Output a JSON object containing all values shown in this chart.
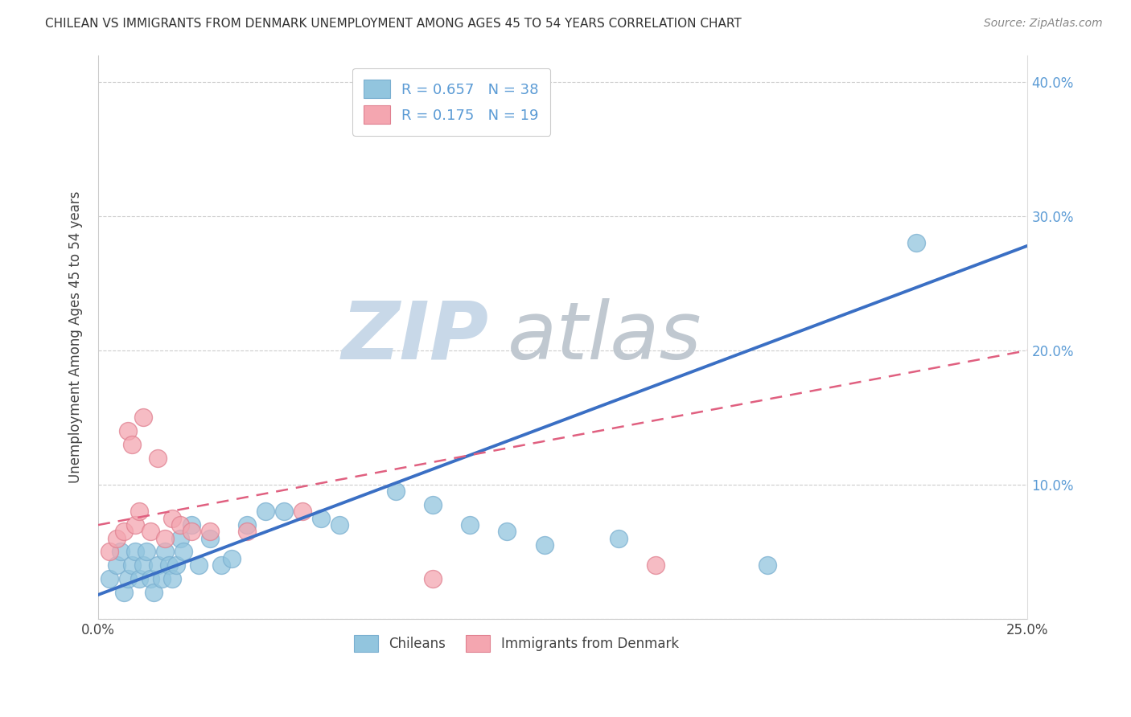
{
  "title": "CHILEAN VS IMMIGRANTS FROM DENMARK UNEMPLOYMENT AMONG AGES 45 TO 54 YEARS CORRELATION CHART",
  "source": "Source: ZipAtlas.com",
  "ylabel": "Unemployment Among Ages 45 to 54 years",
  "xlim": [
    0.0,
    0.25
  ],
  "ylim": [
    0.0,
    0.42
  ],
  "x_ticks": [
    0.0,
    0.05,
    0.1,
    0.15,
    0.2,
    0.25
  ],
  "x_tick_labels": [
    "0.0%",
    "",
    "",
    "",
    "",
    "25.0%"
  ],
  "y_ticks": [
    0.0,
    0.1,
    0.2,
    0.3,
    0.4
  ],
  "y_tick_labels_right": [
    "",
    "10.0%",
    "20.0%",
    "30.0%",
    "40.0%"
  ],
  "color_chileans": "#92C5DE",
  "color_denmark": "#F4A6B0",
  "color_line_chileans": "#3A6FC4",
  "color_line_denmark": "#E06080",
  "watermark_zip_color": "#C8D8E8",
  "watermark_atlas_color": "#C0C8D0",
  "chileans_x": [
    0.003,
    0.005,
    0.006,
    0.007,
    0.008,
    0.009,
    0.01,
    0.011,
    0.012,
    0.013,
    0.014,
    0.015,
    0.016,
    0.017,
    0.018,
    0.019,
    0.02,
    0.021,
    0.022,
    0.023,
    0.025,
    0.027,
    0.03,
    0.033,
    0.036,
    0.04,
    0.045,
    0.05,
    0.06,
    0.065,
    0.08,
    0.09,
    0.1,
    0.11,
    0.12,
    0.14,
    0.18,
    0.22
  ],
  "chileans_y": [
    0.03,
    0.04,
    0.05,
    0.02,
    0.03,
    0.04,
    0.05,
    0.03,
    0.04,
    0.05,
    0.03,
    0.02,
    0.04,
    0.03,
    0.05,
    0.04,
    0.03,
    0.04,
    0.06,
    0.05,
    0.07,
    0.04,
    0.06,
    0.04,
    0.045,
    0.07,
    0.08,
    0.08,
    0.075,
    0.07,
    0.095,
    0.085,
    0.07,
    0.065,
    0.055,
    0.06,
    0.04,
    0.28
  ],
  "denmark_x": [
    0.003,
    0.005,
    0.007,
    0.008,
    0.009,
    0.01,
    0.011,
    0.012,
    0.014,
    0.016,
    0.018,
    0.02,
    0.022,
    0.025,
    0.03,
    0.04,
    0.055,
    0.09,
    0.15
  ],
  "denmark_y": [
    0.05,
    0.06,
    0.065,
    0.14,
    0.13,
    0.07,
    0.08,
    0.15,
    0.065,
    0.12,
    0.06,
    0.075,
    0.07,
    0.065,
    0.065,
    0.065,
    0.08,
    0.03,
    0.04
  ]
}
